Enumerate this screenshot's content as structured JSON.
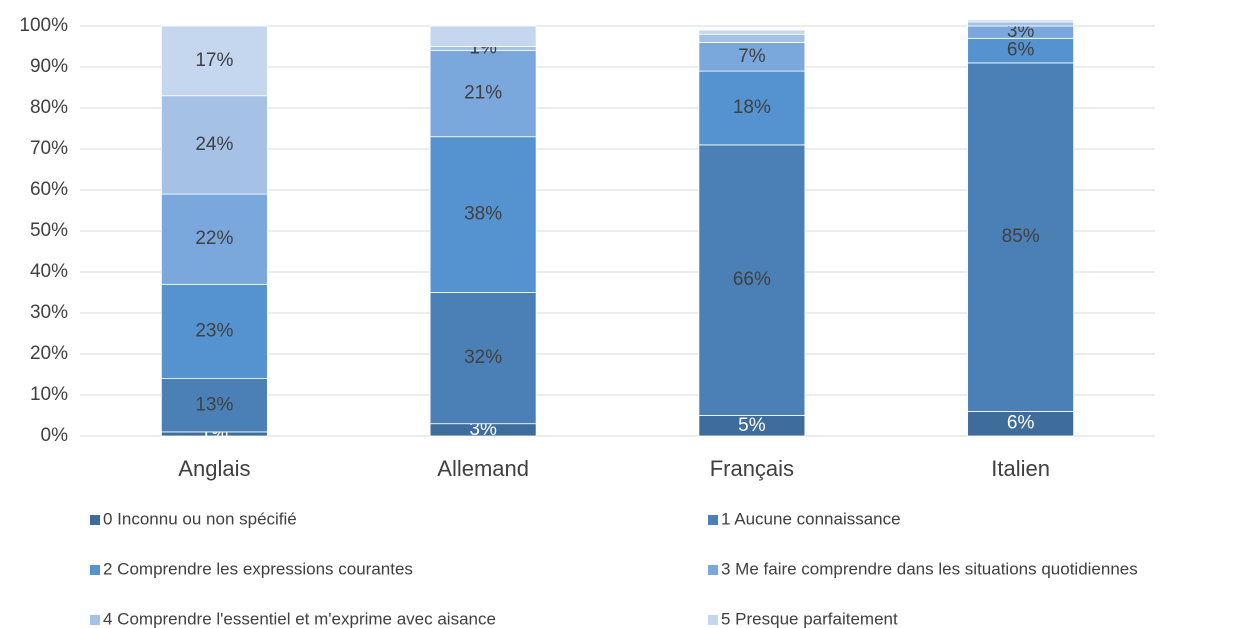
{
  "chart_data": {
    "type": "stacked_bar",
    "categories": [
      "Anglais",
      "Allemand",
      "Français",
      "Italien"
    ],
    "series": [
      {
        "name": "0 Inconnu ou non spécifié",
        "color": "#3e6c9b",
        "values": [
          1,
          3,
          5,
          6
        ],
        "value_labels": [
          "1%",
          "3%",
          "5%",
          "6%"
        ]
      },
      {
        "name": "1 Aucune connaissance",
        "color": "#4a80b6",
        "values": [
          13,
          32,
          66,
          85
        ],
        "value_labels": [
          "13%",
          "32%",
          "66%",
          "85%"
        ]
      },
      {
        "name": "2 Comprendre les expressions courantes",
        "color": "#5593d0",
        "values": [
          23,
          38,
          18,
          6
        ],
        "value_labels": [
          "23%",
          "38%",
          "18%",
          "6%"
        ]
      },
      {
        "name": "3 Me faire comprendre dans les situations quotidiennes",
        "color": "#7aa8dd",
        "values": [
          22,
          21,
          7,
          3
        ],
        "value_labels": [
          "22%",
          "21%",
          "7%",
          "3%"
        ]
      },
      {
        "name": "4 Comprendre l'essentiel et m'exprime avec aisance",
        "color": "#a6c1e6",
        "values": [
          24,
          1,
          2,
          1
        ],
        "value_labels": [
          "24%",
          "1%",
          null,
          null
        ]
      },
      {
        "name": "5 Presque parfaitement",
        "color": "#c5d6ef",
        "values": [
          17,
          5,
          1,
          0.5
        ],
        "value_labels": [
          "17%",
          null,
          null,
          null
        ]
      }
    ],
    "ylim": [
      0,
      100
    ],
    "yticks": [
      {
        "value": 0,
        "label": "0%"
      },
      {
        "value": 10,
        "label": "10%"
      },
      {
        "value": 20,
        "label": "20%"
      },
      {
        "value": 30,
        "label": "30%"
      },
      {
        "value": 40,
        "label": "40%"
      },
      {
        "value": 50,
        "label": "50%"
      },
      {
        "value": 60,
        "label": "60%"
      },
      {
        "value": 70,
        "label": "70%"
      },
      {
        "value": 80,
        "label": "80%"
      },
      {
        "value": 90,
        "label": "90%"
      },
      {
        "value": 100,
        "label": "100%"
      }
    ],
    "grid": true,
    "legend": "bottom"
  }
}
